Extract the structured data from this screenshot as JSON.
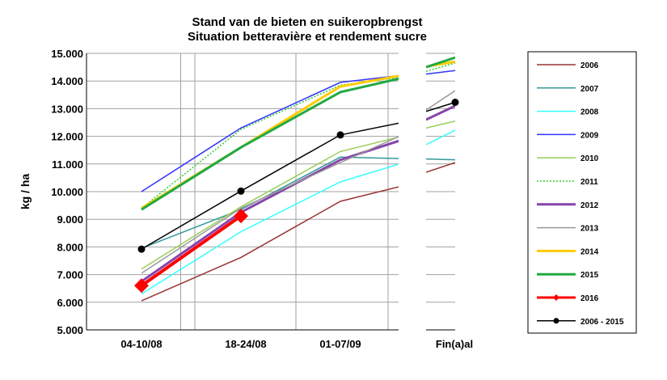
{
  "chart_data": {
    "type": "line",
    "title": "Stand van de bieten en suikeropbrengst",
    "subtitle": "Situation betteravière et rendement sucre",
    "ylabel": "kg / ha",
    "ylim": [
      5000,
      15000
    ],
    "y_ticks": [
      "5.000",
      "6.000",
      "7.000",
      "8.000",
      "9.000",
      "10.000",
      "11.000",
      "12.000",
      "13.000",
      "14.000",
      "15.000"
    ],
    "categories": [
      "04-10/08",
      "18-24/08",
      "01-07/09",
      "Fin(a)al"
    ],
    "grid": true,
    "legend_position": "right",
    "series": [
      {
        "name": "2006",
        "color": "#993333",
        "points": [
          [
            0,
            6050
          ],
          [
            1,
            7620
          ],
          [
            2,
            9650
          ],
          [
            2.73,
            10300
          ]
        ],
        "final": [
          10700,
          11050
        ]
      },
      {
        "name": "2007",
        "color": "#339999",
        "points": [
          [
            0,
            7950
          ],
          [
            1,
            9350
          ],
          [
            2,
            11250
          ],
          [
            2.73,
            11180
          ]
        ],
        "final": [
          11180,
          11150
        ]
      },
      {
        "name": "2008",
        "color": "#33ffff",
        "points": [
          [
            0,
            6300
          ],
          [
            1,
            8550
          ],
          [
            2,
            10350
          ],
          [
            2.73,
            11150
          ]
        ],
        "final": [
          11700,
          12220
        ]
      },
      {
        "name": "2009",
        "color": "#3333ff",
        "points": [
          [
            0,
            10000
          ],
          [
            1,
            12300
          ],
          [
            2,
            13950
          ],
          [
            2.73,
            14250
          ]
        ],
        "final": [
          14250,
          14380
        ]
      },
      {
        "name": "2010",
        "color": "#99cc55",
        "points": [
          [
            0,
            7200
          ],
          [
            1,
            9450
          ],
          [
            2,
            11450
          ],
          [
            2.73,
            12100
          ]
        ],
        "final": [
          12300,
          12550
        ]
      },
      {
        "name": "2011",
        "color": "#33cc33",
        "dashed": true,
        "points": [
          [
            0,
            9400
          ],
          [
            1,
            12250
          ],
          [
            2,
            13850
          ],
          [
            2.73,
            14200
          ]
        ],
        "final": [
          14350,
          14650
        ]
      },
      {
        "name": "2012",
        "color": "#8844aa",
        "thick": true,
        "points": [
          [
            0,
            6750
          ],
          [
            1,
            9250
          ],
          [
            2,
            11150
          ],
          [
            2.73,
            12000
          ]
        ],
        "final": [
          12600,
          13100
        ]
      },
      {
        "name": "2013",
        "color": "#999999",
        "points": [
          [
            0,
            7050
          ],
          [
            1,
            9400
          ],
          [
            2,
            11050
          ],
          [
            2.73,
            12220
          ]
        ],
        "final": [
          12950,
          13650
        ]
      },
      {
        "name": "2014",
        "color": "#ffcc00",
        "thick": true,
        "points": [
          [
            0,
            9400
          ],
          [
            1,
            11600
          ],
          [
            2,
            13800
          ],
          [
            2.73,
            14280
          ]
        ],
        "final": [
          14520,
          14700
        ]
      },
      {
        "name": "2015",
        "color": "#22aa44",
        "thick": true,
        "points": [
          [
            0,
            9350
          ],
          [
            1,
            11600
          ],
          [
            2,
            13600
          ],
          [
            2.73,
            14200
          ]
        ],
        "final": [
          14500,
          14850
        ]
      },
      {
        "name": "2016",
        "color": "#ff0000",
        "thick": true,
        "marker": "diamond",
        "points": [
          [
            0,
            6600
          ],
          [
            1,
            9120
          ]
        ]
      },
      {
        "name": "2006 - 2015",
        "color": "#000000",
        "marker": "circle",
        "points": [
          [
            0,
            7920
          ],
          [
            1,
            10020
          ],
          [
            2,
            12050
          ],
          [
            2.73,
            12580
          ]
        ],
        "final": [
          12900,
          13230
        ],
        "final_marker": true
      }
    ]
  }
}
